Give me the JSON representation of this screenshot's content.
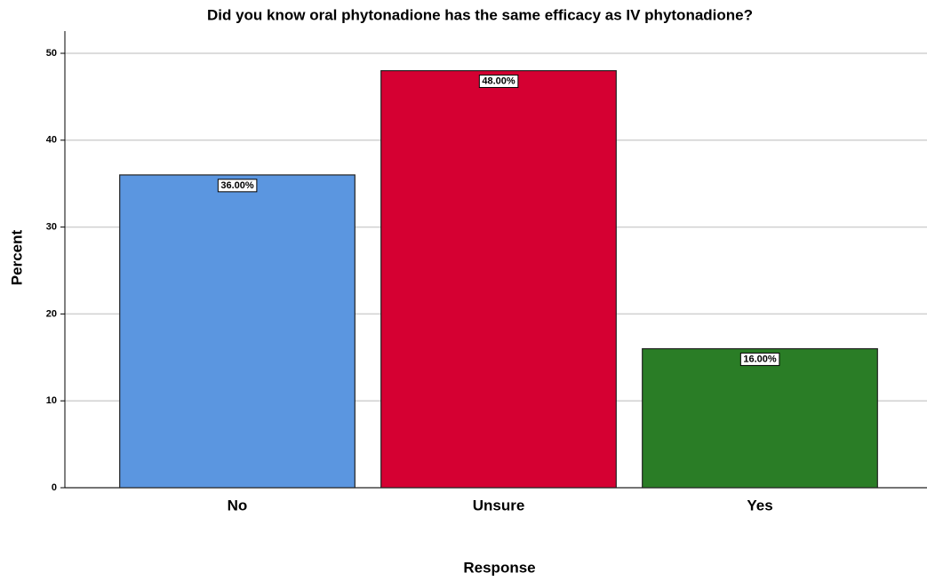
{
  "chart_data": {
    "type": "bar",
    "title": "Did you know oral phytonadione has the same efficacy as IV phytonadione?",
    "x_label": "Response",
    "y_label": "Percent",
    "categories": [
      "No",
      "Unsure",
      "Yes"
    ],
    "values": [
      36,
      48,
      16
    ],
    "value_labels": [
      "36.00%",
      "48.00%",
      "16.00%"
    ],
    "colors": [
      "#5b96e0",
      "#d50032",
      "#2a7d26"
    ],
    "ylim": [
      0,
      50
    ],
    "yticks": [
      0,
      10,
      20,
      30,
      40,
      50
    ],
    "grid": true
  }
}
